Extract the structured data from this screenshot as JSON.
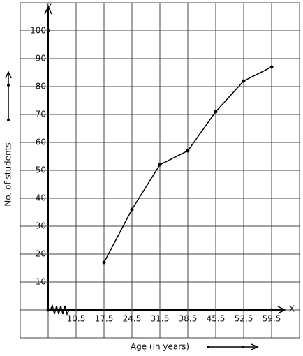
{
  "chart_data": {
    "type": "line",
    "x_label": "Age (in years)",
    "y_label": "No. of students",
    "x_axis_name": "X",
    "y_axis_name": "Y",
    "x": [
      17.5,
      24.5,
      31.5,
      38.5,
      45.5,
      52.5,
      59.5
    ],
    "values": [
      17,
      36,
      52,
      57,
      71,
      82,
      87
    ],
    "color": "#000000",
    "xlim": [
      -3.5,
      66.5
    ],
    "xticks": [
      10.5,
      17.5,
      24.5,
      31.5,
      38.5,
      45.5,
      52.5,
      59.5
    ],
    "ylim": [
      -10,
      110
    ],
    "yticks": [
      10,
      20,
      30,
      40,
      50,
      60,
      70,
      80,
      90,
      100
    ],
    "grid": true
  }
}
